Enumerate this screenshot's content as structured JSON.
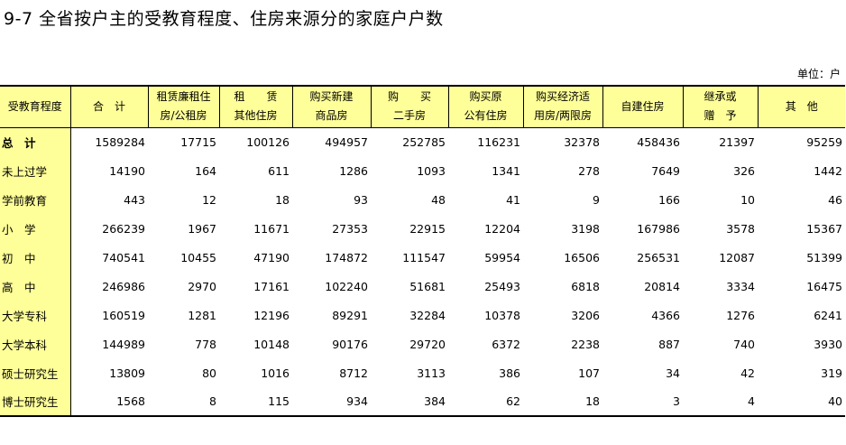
{
  "title": "9-7  全省按户主的受教育程度、住房来源分的家庭户户数",
  "unit": "单位：户",
  "table": {
    "headers": [
      [
        "受教育程度",
        ""
      ],
      [
        "合　计",
        ""
      ],
      [
        "租赁廉租住",
        "房/公租房"
      ],
      [
        "租　　赁",
        "其他住房"
      ],
      [
        "购买新建",
        "商品房"
      ],
      [
        "购　　买",
        "二手房"
      ],
      [
        "购买原",
        "公有住房"
      ],
      [
        "购买经济适",
        "用房/两限房"
      ],
      [
        "自建住房",
        ""
      ],
      [
        "继承或",
        "赠　予"
      ],
      [
        "其　他",
        ""
      ]
    ],
    "rows": [
      [
        "总　计",
        "1589284",
        "17715",
        "100126",
        "494957",
        "252785",
        "116231",
        "32378",
        "458436",
        "21397",
        "95259"
      ],
      [
        "未上过学",
        "14190",
        "164",
        "611",
        "1286",
        "1093",
        "1341",
        "278",
        "7649",
        "326",
        "1442"
      ],
      [
        "学前教育",
        "443",
        "12",
        "18",
        "93",
        "48",
        "41",
        "9",
        "166",
        "10",
        "46"
      ],
      [
        "小　学",
        "266239",
        "1967",
        "11671",
        "27353",
        "22915",
        "12204",
        "3198",
        "167986",
        "3578",
        "15367"
      ],
      [
        "初　中",
        "740541",
        "10455",
        "47190",
        "174872",
        "111547",
        "59954",
        "16506",
        "256531",
        "12087",
        "51399"
      ],
      [
        "高　中",
        "246986",
        "2970",
        "17161",
        "102240",
        "51681",
        "25493",
        "6818",
        "20814",
        "3334",
        "16475"
      ],
      [
        "大学专科",
        "160519",
        "1281",
        "12196",
        "89291",
        "32284",
        "10378",
        "3206",
        "4366",
        "1276",
        "6241"
      ],
      [
        "大学本科",
        "144989",
        "778",
        "10148",
        "90176",
        "29720",
        "6372",
        "2238",
        "887",
        "740",
        "3930"
      ],
      [
        "硕士研究生",
        "13809",
        "80",
        "1016",
        "8712",
        "3113",
        "386",
        "107",
        "34",
        "42",
        "319"
      ],
      [
        "博士研究生",
        "1568",
        "8",
        "115",
        "934",
        "384",
        "62",
        "18",
        "3",
        "4",
        "40"
      ]
    ]
  }
}
